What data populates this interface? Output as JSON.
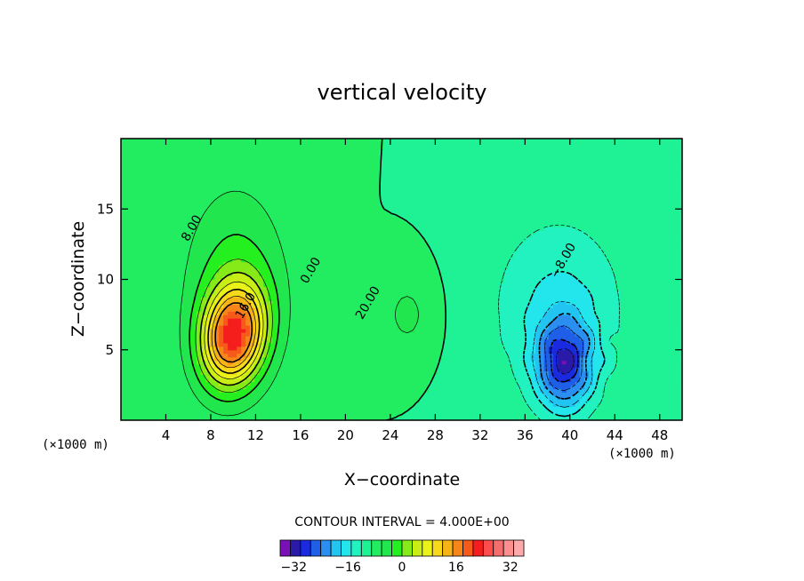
{
  "chart_data": {
    "type": "heatmap",
    "title": "vertical velocity",
    "xlabel": "X−coordinate",
    "ylabel": "Z−coordinate",
    "x_unit_left": "(×1000 m)",
    "x_unit_right": "(×1000 m)",
    "xlim": [
      0,
      50
    ],
    "ylim": [
      0,
      20
    ],
    "x_ticks": [
      4,
      8,
      12,
      16,
      20,
      24,
      28,
      32,
      36,
      40,
      44,
      48
    ],
    "y_ticks": [
      5,
      10,
      15
    ],
    "contour_interval_label": "CONTOUR INTERVAL = 4.000E+00",
    "contour_labels": [
      {
        "text": "8.00",
        "x": 6.6,
        "y": 13.5
      },
      {
        "text": "16.0",
        "x": 11.4,
        "y": 8.0
      },
      {
        "text": "0.00",
        "x": 17.2,
        "y": 10.5
      },
      {
        "text": "20.00",
        "x": 22.3,
        "y": 8.2
      },
      {
        "text": "−8.00",
        "x": 39.7,
        "y": 11.2
      }
    ],
    "features": [
      {
        "name": "updraft",
        "center_x": 10,
        "center_z": 6,
        "peak": 36
      },
      {
        "name": "downdraft",
        "center_x": 39.5,
        "center_z": 4,
        "peak": -24
      }
    ],
    "colorbar": {
      "min": -36,
      "max": 36,
      "step": 4,
      "tick_values": [
        -32,
        -16,
        0,
        16,
        32
      ],
      "tick_labels": [
        "−32",
        "−16",
        "0",
        "16",
        "32"
      ],
      "colors": [
        "#7a10b8",
        "#2a1aa8",
        "#1a2ae0",
        "#1f5fe8",
        "#2a8ff0",
        "#22c4f2",
        "#22e6ec",
        "#22f2c0",
        "#1ef294",
        "#22ec60",
        "#22e64e",
        "#24f020",
        "#86ea18",
        "#c8ee16",
        "#eaf21a",
        "#f8d81a",
        "#f7b418",
        "#f7861a",
        "#f55a1a",
        "#f51d1d",
        "#ff4d4d",
        "#f56e6e",
        "#ff8f8f",
        "#ffaaaa"
      ]
    }
  }
}
